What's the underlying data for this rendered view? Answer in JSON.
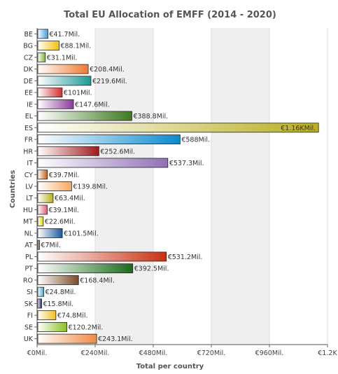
{
  "chart_data": {
    "type": "bar",
    "orientation": "horizontal",
    "title": "Total EU Allocation of EMFF (2014 - 2020)",
    "xlabel": "Total per country",
    "ylabel": "Countries",
    "xlim": [
      0,
      1200
    ],
    "x_ticks": [
      0,
      240,
      480,
      720,
      960,
      1200
    ],
    "x_tick_labels": [
      "€0Mil.",
      "€240Mil.",
      "€480Mil.",
      "€720Mil.",
      "€960Mil.",
      "€1.2K"
    ],
    "grid": "alternating vertical bands",
    "categories": [
      "BE",
      "BG",
      "CZ",
      "DK",
      "DE",
      "EE",
      "IE",
      "EL",
      "ES",
      "FR",
      "HR",
      "IT",
      "CY",
      "LV",
      "LT",
      "HU",
      "MT",
      "NL",
      "AT",
      "PL",
      "PT",
      "RO",
      "SI",
      "SK",
      "FI",
      "SE",
      "UK"
    ],
    "values": [
      41.7,
      88.1,
      31.1,
      208.4,
      219.6,
      101,
      147.6,
      388.8,
      1160,
      588,
      252.6,
      537.3,
      39.7,
      139.8,
      63.4,
      39.1,
      22.6,
      101.5,
      7,
      531.2,
      392.5,
      168.4,
      24.8,
      15.8,
      74.8,
      120.2,
      243.1
    ],
    "data_labels": [
      "€41.7Mil.",
      "€88.1Mil.",
      "€31.1Mil.",
      "€208.4Mil.",
      "€219.6Mil.",
      "€101Mil.",
      "€147.6Mil.",
      "€388.8Mil.",
      "€1.16KMil.",
      "€588Mil.",
      "€252.6Mil.",
      "€537.3Mil.",
      "€39.7Mil.",
      "€139.8Mil.",
      "€63.4Mil.",
      "€39.1Mil.",
      "€22.6Mil.",
      "€101.5Mil.",
      "€7Mil.",
      "€531.2Mil.",
      "€392.5Mil.",
      "€168.4Mil.",
      "€24.8Mil.",
      "€15.8Mil.",
      "€74.8Mil.",
      "€120.2Mil.",
      "€243.1Mil."
    ],
    "colors": [
      "#3d9be0",
      "#f2c200",
      "#7ab82a",
      "#f07a30",
      "#1a9a96",
      "#d42a2a",
      "#8a3a9a",
      "#3c7a1e",
      "#b8ae1e",
      "#0a8ad0",
      "#a01818",
      "#9070b8",
      "#c0601a",
      "#f7a860",
      "#b8b018",
      "#e05a7a",
      "#e8d800",
      "#1a5a9a",
      "#5a3a1a",
      "#c83010",
      "#1a6a1a",
      "#7a4a28",
      "#3aa8d8",
      "#101860",
      "#f0c020",
      "#8ac020",
      "#f08a40"
    ]
  }
}
